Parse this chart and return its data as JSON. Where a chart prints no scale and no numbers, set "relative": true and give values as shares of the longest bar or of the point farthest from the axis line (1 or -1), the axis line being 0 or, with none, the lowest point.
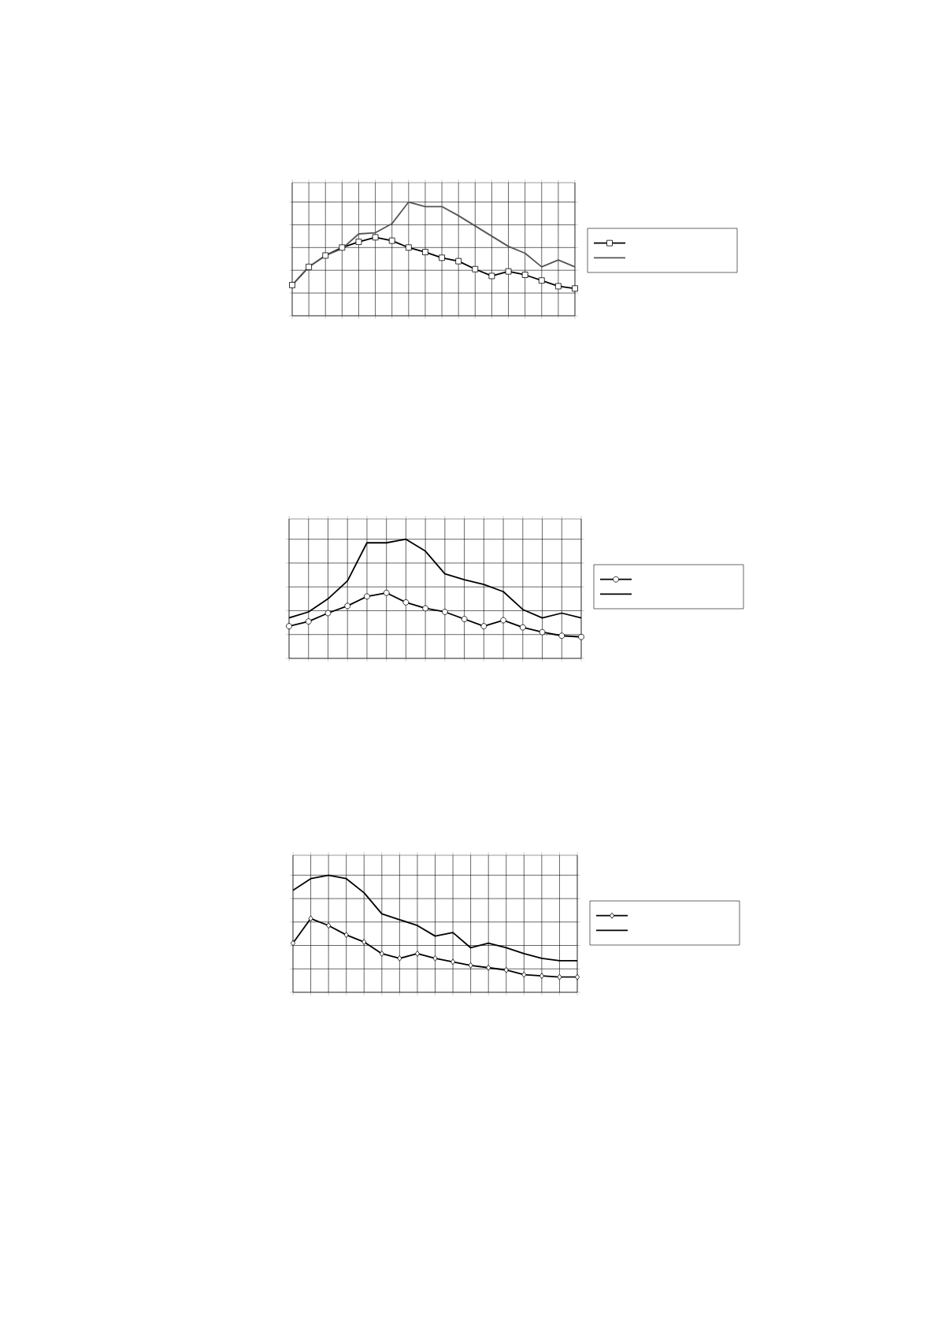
{
  "chart_data": [
    {
      "type": "line",
      "relative": true,
      "grid": true,
      "line_style": "solid",
      "categories": [
        null,
        null,
        null,
        null,
        null,
        null,
        null,
        null,
        null,
        null,
        null,
        null,
        null,
        null,
        null,
        null,
        null,
        null
      ],
      "series": [
        {
          "color": "#000000",
          "marker": "square",
          "values": [
            0.27,
            0.43,
            0.53,
            0.6,
            0.65,
            0.69,
            0.66,
            0.6,
            0.56,
            0.51,
            0.48,
            0.41,
            0.35,
            0.39,
            0.36,
            0.31,
            0.26,
            0.24
          ]
        },
        {
          "color": "#555555",
          "marker": "none",
          "values": [
            0.27,
            0.43,
            0.53,
            0.59,
            0.72,
            0.73,
            0.81,
            1.0,
            0.96,
            0.96,
            0.88,
            0.79,
            0.7,
            0.61,
            0.55,
            0.43,
            0.49,
            0.43
          ]
        }
      ]
    },
    {
      "type": "line",
      "relative": true,
      "grid": true,
      "line_style": "solid",
      "categories": [
        null,
        null,
        null,
        null,
        null,
        null,
        null,
        null,
        null,
        null,
        null,
        null,
        null,
        null,
        null,
        null
      ],
      "series": [
        {
          "color": "#000000",
          "marker": "circle",
          "values": [
            0.27,
            0.31,
            0.38,
            0.44,
            0.52,
            0.55,
            0.47,
            0.42,
            0.39,
            0.33,
            0.27,
            0.32,
            0.26,
            0.22,
            0.19,
            0.18
          ]
        },
        {
          "color": "#000000",
          "marker": "none",
          "values": [
            0.34,
            0.39,
            0.5,
            0.65,
            0.97,
            0.97,
            1.0,
            0.9,
            0.71,
            0.66,
            0.62,
            0.56,
            0.41,
            0.34,
            0.38,
            0.34
          ]
        }
      ]
    },
    {
      "type": "line",
      "relative": true,
      "grid": true,
      "line_style": "solid",
      "categories": [
        null,
        null,
        null,
        null,
        null,
        null,
        null,
        null,
        null,
        null,
        null,
        null,
        null,
        null,
        null,
        null,
        null
      ],
      "series": [
        {
          "color": "#000000",
          "marker": "diamond",
          "values": [
            0.42,
            0.63,
            0.57,
            0.49,
            0.43,
            0.33,
            0.29,
            0.33,
            0.29,
            0.26,
            0.23,
            0.21,
            0.19,
            0.15,
            0.14,
            0.13,
            0.13
          ]
        },
        {
          "color": "#000000",
          "marker": "none",
          "values": [
            0.87,
            0.97,
            1.0,
            0.97,
            0.85,
            0.67,
            0.62,
            0.57,
            0.48,
            0.51,
            0.38,
            0.42,
            0.38,
            0.33,
            0.29,
            0.27,
            0.27
          ]
        }
      ]
    }
  ]
}
